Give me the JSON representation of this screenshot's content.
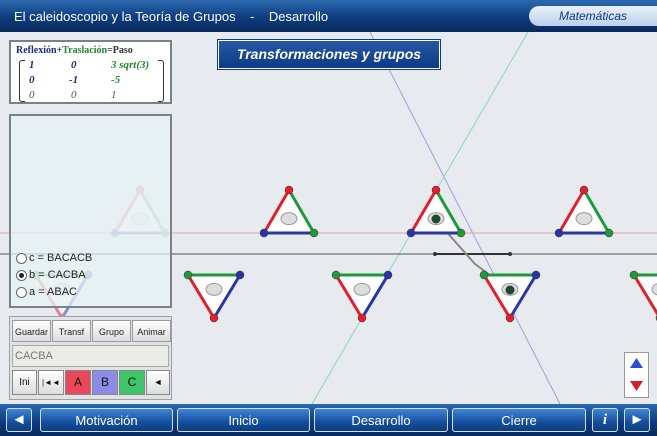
{
  "header": {
    "title": "El caleidoscopio y la Teoría de Grupos    -    Desarrollo",
    "subject_tab": "Matemáticas"
  },
  "banner": "Transformaciones y grupos",
  "matrix": {
    "reflexion": "Reflexión",
    "plus": "+",
    "traslacion": "Traslación",
    "equals": "=",
    "paso": "Paso",
    "rows": [
      [
        "1",
        "0",
        "3 sqrt(3)"
      ],
      [
        "0",
        "-1",
        "-5"
      ],
      [
        "0",
        "0",
        "1"
      ]
    ]
  },
  "options": [
    {
      "label": "c = BACACB",
      "selected": false
    },
    {
      "label": "b = CACBA",
      "selected": true
    },
    {
      "label": "a = ABAC",
      "selected": false
    }
  ],
  "toolbar": {
    "guardar": "Guardar",
    "transf": "Transf",
    "grupo": "Grupo",
    "animar": "Animar"
  },
  "word_input": {
    "value": "CACBA"
  },
  "step_buttons": {
    "ini": "Ini",
    "rewind": "|◄◄",
    "a": "A",
    "b": "B",
    "c": "C",
    "back": "◄"
  },
  "nav": {
    "prev": "◄",
    "motivacion": "Motivación",
    "inicio": "Inicio",
    "desarrollo": "Desarrollo",
    "cierre": "Cierre",
    "info": "i",
    "next": "►"
  },
  "colors": {
    "bar_blue": "#0d3c7e",
    "reflection_blue": "#1b2f8a",
    "translation_green": "#1f8a2c",
    "btn_a": "#e8485a",
    "btn_b": "#8c8ce8",
    "btn_c": "#3fc46a"
  }
}
